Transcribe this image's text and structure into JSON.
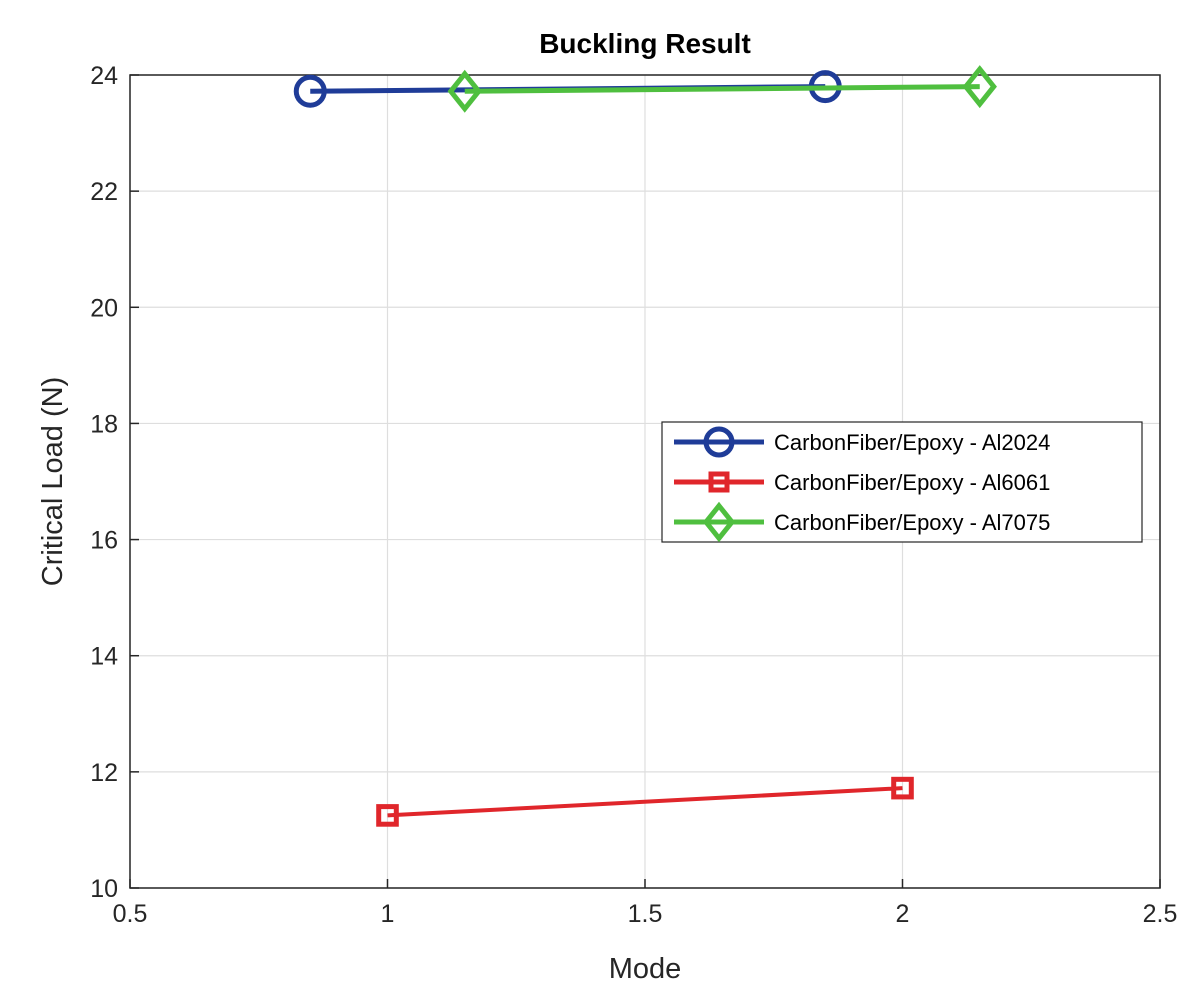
{
  "chart_data": {
    "type": "line",
    "title": "Buckling Result",
    "xlabel": "Mode",
    "ylabel": "Critical Load (N)",
    "xlim": [
      0.5,
      2.5
    ],
    "ylim": [
      10,
      24
    ],
    "xticks": [
      "0.5",
      "1",
      "1.5",
      "2",
      "2.5"
    ],
    "yticks": [
      "10",
      "12",
      "14",
      "16",
      "18",
      "20",
      "22",
      "24"
    ],
    "grid": true,
    "legend_position": "right",
    "series": [
      {
        "name": "CarbonFiber/Epoxy - Al2024",
        "color": "#1f3c98",
        "marker": "circle",
        "x": [
          0.85,
          1.85
        ],
        "y": [
          23.72,
          23.8
        ]
      },
      {
        "name": "CarbonFiber/Epoxy - Al6061",
        "color": "#e0262b",
        "marker": "square",
        "x": [
          1.0,
          2.0
        ],
        "y": [
          11.25,
          11.72
        ]
      },
      {
        "name": "CarbonFiber/Epoxy - Al7075",
        "color": "#4fbf3f",
        "marker": "diamond",
        "x": [
          1.15,
          2.15
        ],
        "y": [
          23.72,
          23.8
        ]
      }
    ]
  }
}
